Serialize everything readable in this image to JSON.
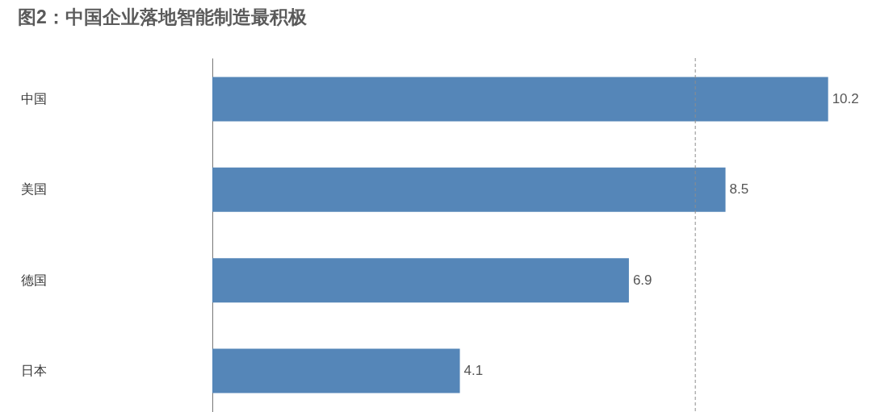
{
  "chart_data": {
    "type": "bar",
    "orientation": "horizontal",
    "title": "图2：中国企业落地智能制造最积极",
    "categories": [
      "中国",
      "美国",
      "德国",
      "日本"
    ],
    "values": [
      10.2,
      8.5,
      6.9,
      4.1
    ],
    "color": "#5586b8",
    "data_labels": true,
    "xlim": [
      0,
      10.9
    ],
    "tick_labels": "y",
    "ref_lines": [
      {
        "axis": "x",
        "value": 8,
        "color": "#8c8c8c",
        "line_style": "dashed"
      }
    ]
  }
}
